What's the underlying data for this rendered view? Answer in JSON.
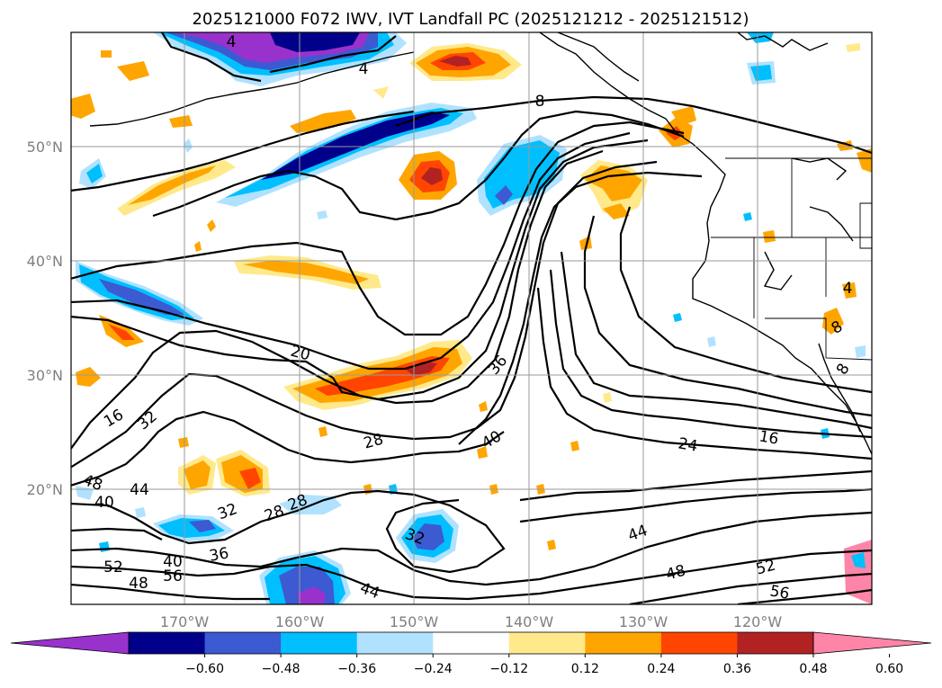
{
  "title": "2025121000 F072 IWV, IVT Landfall PC (2025121212 - 2025121512)",
  "lat_labels": [
    "50°N",
    "40°N",
    "30°N",
    "20°N"
  ],
  "lon_labels": [
    "170°W",
    "160°W",
    "150°W",
    "140°W",
    "130°W",
    "120°W"
  ],
  "colorbar": {
    "ticks": [
      "−0.60",
      "−0.48",
      "−0.36",
      "−0.24",
      "−0.12",
      "0.12",
      "0.24",
      "0.36",
      "0.48",
      "0.60"
    ],
    "colors": [
      "#9932cc",
      "#00008b",
      "#3c5ad2",
      "#00bfff",
      "#b0e2ff",
      "#ffffff",
      "#ffe98a",
      "#ffa500",
      "#ff4500",
      "#b22222",
      "#ff85a8"
    ]
  },
  "contour_labels": [
    "4",
    "8",
    "4",
    "8",
    "8",
    "4",
    "20",
    "36",
    "16",
    "32",
    "28",
    "40",
    "24",
    "16",
    "48",
    "44",
    "40",
    "32",
    "28",
    "28",
    "32",
    "36",
    "44",
    "52",
    "40",
    "48",
    "56",
    "48",
    "52",
    "56",
    "44"
  ],
  "colors": {
    "dark_purple": "#9932cc",
    "navy": "#00008b",
    "royal": "#3c5ad2",
    "sky": "#00bfff",
    "pale_blue": "#b0e2ff",
    "yellow": "#ffe98a",
    "orange": "#ffa500",
    "red_orange": "#ff4500",
    "firebrick": "#b22222",
    "pink": "#ff85a8"
  }
}
